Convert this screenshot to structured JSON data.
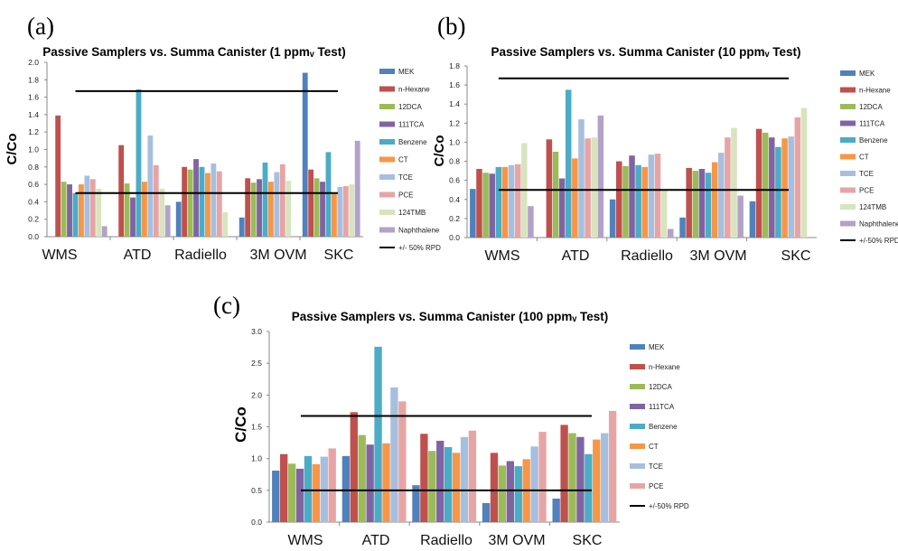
{
  "colors": {
    "MEK": "#4F81BD",
    "n-Hexane": "#C0504D",
    "12DCA": "#9BBB59",
    "111TCA": "#8064A2",
    "Benzene": "#4BACC6",
    "CT": "#F79646",
    "TCE": "#A7BFDE",
    "PCE": "#E6A5A4",
    "124TMB": "#D7E4BD",
    "Naphthalene": "#B3A2C7",
    "rpd_line": "#000000"
  },
  "chart_data": [
    {
      "panel_label": "(a)",
      "type": "bar",
      "title": "Passive Samplers vs. Summa Canister (1 ppmᵥ Test)",
      "ylabel": "C/Co",
      "xlabel": "",
      "ylim": [
        0,
        2.0
      ],
      "yticks": [
        "0.0",
        "0.2",
        "0.4",
        "0.6",
        "0.8",
        "1.0",
        "1.2",
        "1.4",
        "1.6",
        "1.8",
        "2.0"
      ],
      "categories": [
        "WMS",
        "ATD",
        "Radiello",
        "3M OVM",
        "SKC"
      ],
      "legend_position": "right",
      "grid": false,
      "series": [
        {
          "name": "MEK",
          "values": [
            0,
            0,
            0.4,
            0.22,
            1.88
          ]
        },
        {
          "name": "n-Hexane",
          "values": [
            1.39,
            1.05,
            0.8,
            0.67,
            0.77
          ]
        },
        {
          "name": "12DCA",
          "values": [
            0.63,
            0.61,
            0.77,
            0.62,
            0.67
          ]
        },
        {
          "name": "111TCA",
          "values": [
            0.6,
            0.45,
            0.89,
            0.66,
            0.63
          ]
        },
        {
          "name": "Benzene",
          "values": [
            0.5,
            1.69,
            0.8,
            0.85,
            0.97
          ]
        },
        {
          "name": "CT",
          "values": [
            0.6,
            0.63,
            0.73,
            0.63,
            0.49
          ]
        },
        {
          "name": "TCE",
          "values": [
            0.7,
            1.16,
            0.84,
            0.74,
            0.57
          ]
        },
        {
          "name": "PCE",
          "values": [
            0.66,
            0.82,
            0.75,
            0.83,
            0.58
          ]
        },
        {
          "name": "124TMB",
          "values": [
            0.55,
            0.55,
            0.28,
            0.64,
            0.6
          ]
        },
        {
          "name": "Naphthalene",
          "values": [
            0.12,
            0.36,
            0,
            0,
            1.1
          ]
        }
      ],
      "reference_lines": [
        {
          "name": "+/- 50% RPD",
          "values": [
            1.67,
            0.5
          ]
        }
      ]
    },
    {
      "panel_label": "(b)",
      "type": "bar",
      "title": "Passive Samplers vs. Summa Canister (10 ppmᵥ Test)",
      "ylabel": "C/Co",
      "xlabel": "",
      "ylim": [
        0,
        1.8
      ],
      "yticks": [
        "0.0",
        "0.2",
        "0.4",
        "0.6",
        "0.8",
        "1.0",
        "1.2",
        "1.4",
        "1.6",
        "1.8"
      ],
      "categories": [
        "WMS",
        "ATD",
        "Radiello",
        "3M OVM",
        "SKC"
      ],
      "legend_position": "right",
      "grid": false,
      "series": [
        {
          "name": "MEK",
          "values": [
            0.51,
            0,
            0.4,
            0.21,
            0.38
          ]
        },
        {
          "name": "n-Hexane",
          "values": [
            0.72,
            1.03,
            0.8,
            0.73,
            1.14
          ]
        },
        {
          "name": "12DCA",
          "values": [
            0.68,
            0.9,
            0.75,
            0.7,
            1.1
          ]
        },
        {
          "name": "111TCA",
          "values": [
            0.67,
            0.62,
            0.86,
            0.72,
            1.05
          ]
        },
        {
          "name": "Benzene",
          "values": [
            0.74,
            1.55,
            0.76,
            0.68,
            0.95
          ]
        },
        {
          "name": "CT",
          "values": [
            0.74,
            0.83,
            0.74,
            0.79,
            1.04
          ]
        },
        {
          "name": "TCE",
          "values": [
            0.76,
            1.24,
            0.87,
            0.89,
            1.06
          ]
        },
        {
          "name": "PCE",
          "values": [
            0.77,
            1.04,
            0.88,
            1.05,
            1.26
          ]
        },
        {
          "name": "124TMB",
          "values": [
            0.99,
            1.05,
            0.5,
            1.15,
            1.36
          ]
        },
        {
          "name": "Naphthalene",
          "values": [
            0.33,
            1.28,
            0.09,
            0.44,
            0
          ]
        }
      ],
      "reference_lines": [
        {
          "name": "+/-50% RPD",
          "values": [
            1.67,
            0.5
          ]
        }
      ]
    },
    {
      "panel_label": "(c)",
      "type": "bar",
      "title": "Passive Samplers vs. Summa Canister (100 ppmᵥ Test)",
      "ylabel": "C/Co",
      "xlabel": "",
      "ylim": [
        0,
        3.0
      ],
      "yticks": [
        "0.0",
        "0.5",
        "1.0",
        "1.5",
        "2.0",
        "2.5",
        "3.0"
      ],
      "categories": [
        "WMS",
        "ATD",
        "Radiello",
        "3M OVM",
        "SKC"
      ],
      "legend_position": "right",
      "grid": false,
      "series": [
        {
          "name": "MEK",
          "values": [
            0.81,
            1.04,
            0.58,
            0.3,
            0.37
          ]
        },
        {
          "name": "n-Hexane",
          "values": [
            1.07,
            1.73,
            1.39,
            1.09,
            1.53
          ]
        },
        {
          "name": "12DCA",
          "values": [
            0.92,
            1.37,
            1.12,
            0.89,
            1.4
          ]
        },
        {
          "name": "111TCA",
          "values": [
            0.84,
            1.22,
            1.28,
            0.96,
            1.34
          ]
        },
        {
          "name": "Benzene",
          "values": [
            1.04,
            2.76,
            1.18,
            0.88,
            1.07
          ]
        },
        {
          "name": "CT",
          "values": [
            0.91,
            1.24,
            1.09,
            0.99,
            1.3
          ]
        },
        {
          "name": "TCE",
          "values": [
            1.03,
            2.12,
            1.34,
            1.19,
            1.4
          ]
        },
        {
          "name": "PCE",
          "values": [
            1.16,
            1.9,
            1.44,
            1.42,
            1.75
          ]
        }
      ],
      "reference_lines": [
        {
          "name": "+/-50% RPD",
          "values": [
            1.67,
            0.5
          ]
        }
      ]
    }
  ]
}
